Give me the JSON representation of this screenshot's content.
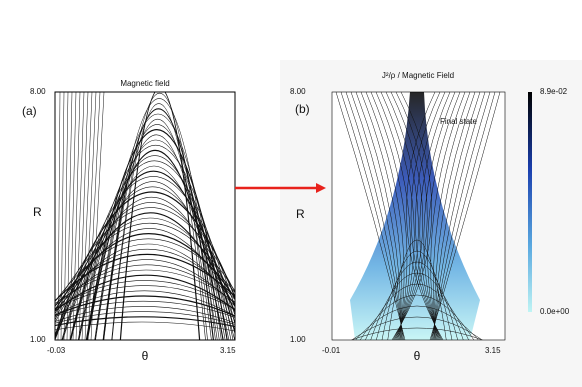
{
  "panel_a": {
    "title": "Magnetic field",
    "label": "(a)",
    "y_axis_label": "R",
    "y_top": "8.00",
    "y_bottom": "1.00",
    "x_axis_label": "θ",
    "x_left": "-0.03",
    "x_right": "3.15"
  },
  "panel_b": {
    "title": "J²/ρ / Magnetic Field",
    "label": "(b)",
    "annotation": "Final state",
    "y_axis_label": "R",
    "y_top": "8.00",
    "y_bottom": "1.00",
    "x_axis_label": "θ",
    "x_left": "-0.01",
    "x_right": "3.15",
    "colorbar_max": "8.9e-02",
    "colorbar_min": "0.0e+00"
  }
}
